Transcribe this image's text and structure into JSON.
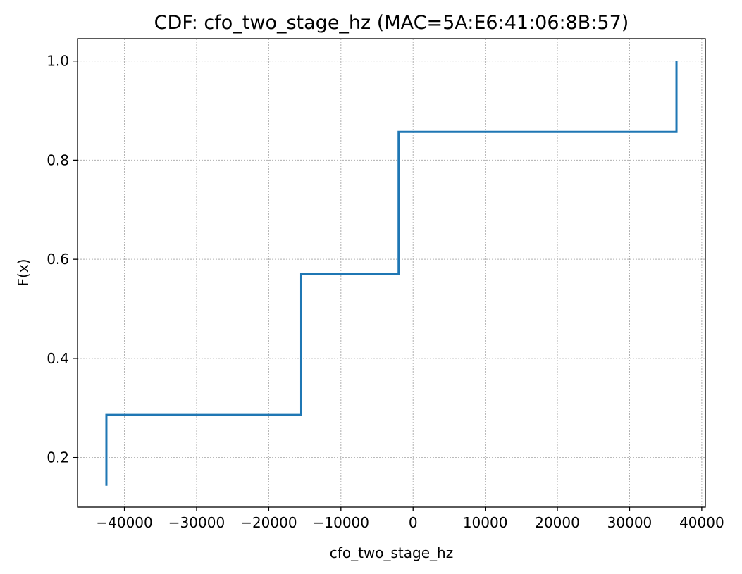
{
  "chart_data": {
    "type": "line",
    "step": true,
    "title": "CDF: cfo_two_stage_hz (MAC=5A:E6:41:06:8B:57)",
    "xlabel": "cfo_two_stage_hz",
    "ylabel": "F(x)",
    "xlim": [
      -46500,
      40500
    ],
    "ylim": [
      0.1,
      1.045
    ],
    "xticks": [
      -40000,
      -30000,
      -20000,
      -10000,
      0,
      10000,
      20000,
      30000,
      40000
    ],
    "xtick_labels": [
      "−40000",
      "−30000",
      "−20000",
      "−10000",
      "0",
      "10000",
      "20000",
      "30000",
      "40000"
    ],
    "yticks": [
      0.2,
      0.4,
      0.6,
      0.8,
      1.0
    ],
    "ytick_labels": [
      "0.2",
      "0.4",
      "0.6",
      "0.8",
      "1.0"
    ],
    "grid": true,
    "series": [
      {
        "color": "#1f77b4",
        "x": [
          -42500,
          -42500,
          -15500,
          -15500,
          -2000,
          -2000,
          36500,
          36500
        ],
        "y": [
          0.143,
          0.286,
          0.286,
          0.571,
          0.571,
          0.857,
          0.857,
          1.0
        ]
      }
    ]
  }
}
